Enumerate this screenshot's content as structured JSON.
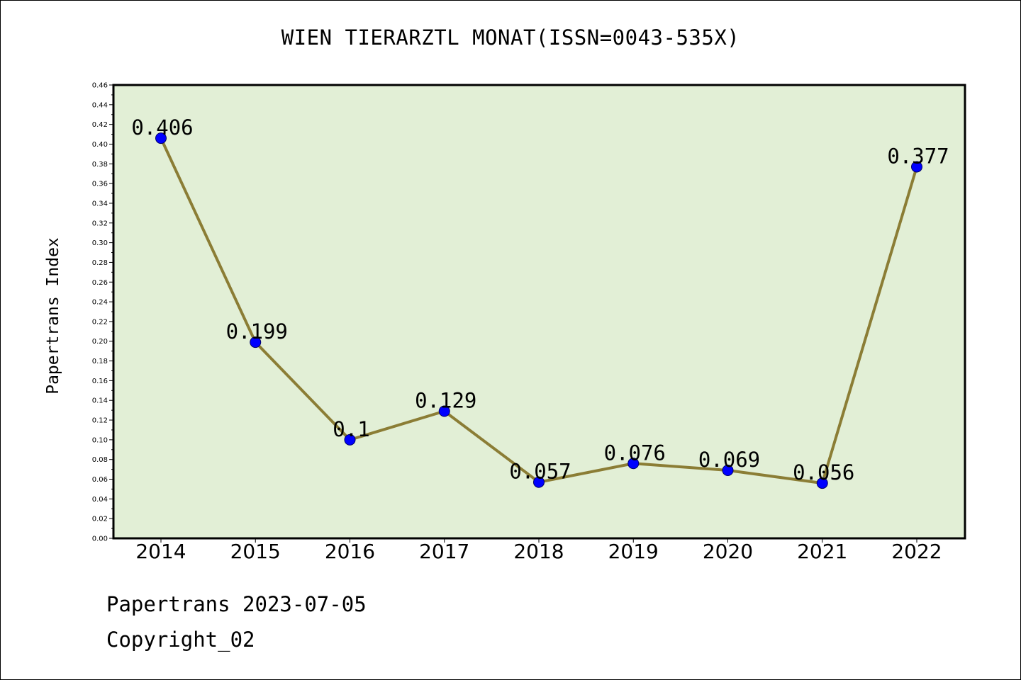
{
  "chart_data": {
    "type": "line",
    "title": "WIEN TIERARZTL MONAT(ISSN=0043-535X)",
    "ylabel": "Papertrans Index",
    "xlabel": "",
    "categories": [
      "2014",
      "2015",
      "2016",
      "2017",
      "2018",
      "2019",
      "2020",
      "2021",
      "2022"
    ],
    "values": [
      0.406,
      0.199,
      0.1,
      0.129,
      0.057,
      0.076,
      0.069,
      0.056,
      0.377
    ],
    "data_labels": [
      "0.406",
      "0.199",
      "0.1",
      "0.129",
      "0.057",
      "0.076",
      "0.069",
      "0.056",
      "0.377"
    ],
    "ylim": [
      0,
      0.46
    ],
    "yticks": [
      "0.00",
      "0.02",
      "0.04",
      "0.06",
      "0.08",
      "0.10",
      "0.12",
      "0.14",
      "0.16",
      "0.18",
      "0.20",
      "0.22",
      "0.24",
      "0.26",
      "0.28",
      "0.30",
      "0.32",
      "0.34",
      "0.36",
      "0.38",
      "0.40",
      "0.42",
      "0.44",
      "0.46"
    ],
    "grid": false,
    "colors": {
      "plot_background": "#e2efd6",
      "line": "#8b7d35",
      "marker_fill": "#0000ff",
      "marker_edge": "#000066"
    }
  },
  "footer": {
    "date_line": "Papertrans 2023-07-05",
    "copyright_line": "Copyright_02"
  }
}
